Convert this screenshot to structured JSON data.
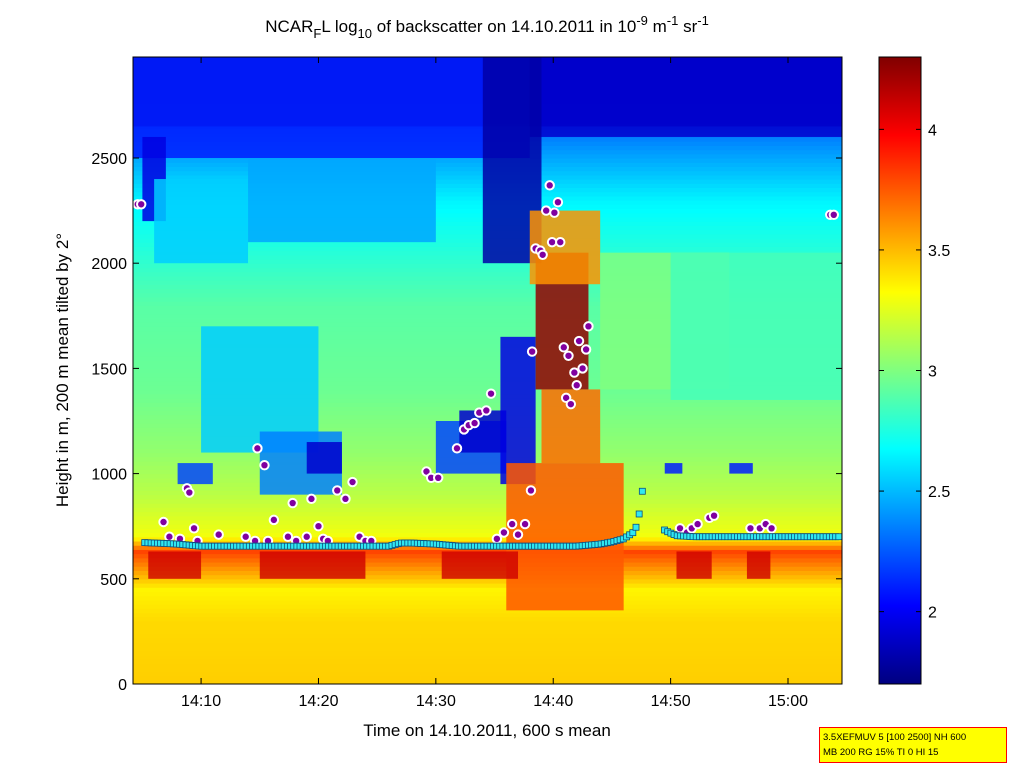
{
  "chart_data": {
    "type": "heatmap",
    "title_parts": {
      "prefix": "NCAR",
      "sub_F": "F",
      "mid1": "L log",
      "sub_10": "10",
      "mid2": " of backscatter on 14.10.2011 in 10",
      "sup_exp1": "-9",
      "mid3": " m",
      "sup_exp2": "-1",
      "mid4": " sr",
      "sup_exp3": "-1"
    },
    "xlabel": "Time on 14.10.2011, 600 s mean",
    "ylabel": "Height in m, 200 m mean tilted by 2°",
    "x_unit": "minutes after 14:00",
    "xlim": [
      4.2,
      64.6
    ],
    "ylim": [
      0,
      2980
    ],
    "x_ticks": [
      {
        "value": 10,
        "label": "14:10"
      },
      {
        "value": 20,
        "label": "14:20"
      },
      {
        "value": 30,
        "label": "14:30"
      },
      {
        "value": 40,
        "label": "14:40"
      },
      {
        "value": 50,
        "label": "14:50"
      },
      {
        "value": 60,
        "label": "15:00"
      }
    ],
    "y_ticks": [
      {
        "value": 0,
        "label": "0"
      },
      {
        "value": 500,
        "label": "500"
      },
      {
        "value": 1000,
        "label": "1000"
      },
      {
        "value": 1500,
        "label": "1500"
      },
      {
        "value": 2000,
        "label": "2000"
      },
      {
        "value": 2500,
        "label": "2500"
      }
    ],
    "colorbar": {
      "range": [
        1.7,
        4.3
      ],
      "ticks": [
        {
          "value": 2,
          "label": "2"
        },
        {
          "value": 2.5,
          "label": "2.5"
        },
        {
          "value": 3,
          "label": "3"
        },
        {
          "value": 3.5,
          "label": "3.5"
        },
        {
          "value": 4,
          "label": "4"
        }
      ],
      "colormap": [
        "#000080",
        "#0000ff",
        "#00ffff",
        "#ffff00",
        "#ff0000",
        "#800000"
      ]
    },
    "field_profile": {
      "heights": [
        0,
        300,
        450,
        550,
        630,
        700,
        900,
        1100,
        1400,
        1800,
        2000,
        2300,
        2600,
        2980
      ],
      "values": [
        3.45,
        3.42,
        3.35,
        3.6,
        3.8,
        3.3,
        3.15,
        3.05,
        2.95,
        2.9,
        2.8,
        2.65,
        2.35,
        1.85
      ]
    },
    "regions": [
      {
        "x": [
          4.2,
          64.6
        ],
        "y": [
          2650,
          2980
        ],
        "value": 1.85
      },
      {
        "x": [
          4.2,
          38
        ],
        "y": [
          2500,
          2980
        ],
        "value": 2.1
      },
      {
        "x": [
          38,
          64.6
        ],
        "y": [
          2600,
          2980
        ],
        "value": 1.9
      },
      {
        "x": [
          5,
          7
        ],
        "y": [
          2200,
          2600
        ],
        "value": 1.95
      },
      {
        "x": [
          6,
          14
        ],
        "y": [
          2000,
          2400
        ],
        "value": 2.55
      },
      {
        "x": [
          14,
          30
        ],
        "y": [
          2100,
          2500
        ],
        "value": 2.45
      },
      {
        "x": [
          10,
          20
        ],
        "y": [
          1100,
          1700
        ],
        "value": 2.55
      },
      {
        "x": [
          15,
          22
        ],
        "y": [
          900,
          1200
        ],
        "value": 2.35
      },
      {
        "x": [
          19,
          22
        ],
        "y": [
          1000,
          1150
        ],
        "value": 1.9
      },
      {
        "x": [
          30,
          36
        ],
        "y": [
          1000,
          1250
        ],
        "value": 2.2
      },
      {
        "x": [
          32,
          36
        ],
        "y": [
          1100,
          1300
        ],
        "value": 1.9
      },
      {
        "x": [
          35.5,
          38.5
        ],
        "y": [
          950,
          1650
        ],
        "value": 1.95
      },
      {
        "x": [
          34,
          39
        ],
        "y": [
          2000,
          2980
        ],
        "value": 1.8
      },
      {
        "x": [
          38.5,
          43
        ],
        "y": [
          1400,
          2050
        ],
        "value": 4.25
      },
      {
        "x": [
          39,
          44
        ],
        "y": [
          1050,
          1400
        ],
        "value": 3.7
      },
      {
        "x": [
          36,
          46
        ],
        "y": [
          350,
          1050
        ],
        "value": 3.75
      },
      {
        "x": [
          38,
          44
        ],
        "y": [
          1900,
          2250
        ],
        "value": 3.6
      },
      {
        "x": [
          44,
          55
        ],
        "y": [
          1400,
          2050
        ],
        "value": 3.0
      },
      {
        "x": [
          50,
          64.6
        ],
        "y": [
          1350,
          2050
        ],
        "value": 2.85
      },
      {
        "x": [
          8,
          11
        ],
        "y": [
          950,
          1050
        ],
        "value": 2.2
      },
      {
        "x": [
          49.5,
          51
        ],
        "y": [
          1000,
          1050
        ],
        "value": 2.1
      },
      {
        "x": [
          55,
          57
        ],
        "y": [
          1000,
          1050
        ],
        "value": 2.1
      }
    ],
    "low_band": {
      "y": [
        500,
        630
      ],
      "value": 4.1,
      "segments": [
        [
          5.5,
          10
        ],
        [
          15,
          24
        ],
        [
          30.5,
          37
        ],
        [
          50.5,
          53.5
        ],
        [
          56.5,
          58.5
        ]
      ]
    },
    "mixing_layer_height": {
      "x": [
        5.2,
        6,
        7,
        8,
        9,
        10,
        12,
        14,
        16,
        18,
        20,
        22,
        24,
        26,
        27,
        28,
        30,
        32,
        34,
        36,
        38,
        40,
        42,
        44,
        45,
        46,
        46.8,
        47.2,
        47.6,
        49.5,
        50.5,
        52,
        54,
        56,
        58,
        60,
        62,
        64.6
      ],
      "y": [
        672,
        670,
        668,
        665,
        660,
        655,
        655,
        655,
        655,
        655,
        655,
        655,
        655,
        655,
        670,
        670,
        665,
        655,
        655,
        655,
        655,
        655,
        655,
        665,
        675,
        690,
        720,
        760,
        920,
        730,
        705,
        700,
        700,
        700,
        700,
        700,
        700,
        700
      ]
    },
    "aerosol_layer_points": {
      "x": [
        4.6,
        4.9,
        6.8,
        7.3,
        8.2,
        8.8,
        9.0,
        9.4,
        9.7,
        11.5,
        13.8,
        14.6,
        14.8,
        15.4,
        15.7,
        16.2,
        17.4,
        17.8,
        18.1,
        19.0,
        19.4,
        20.0,
        20.4,
        20.8,
        21.6,
        22.3,
        22.9,
        23.5,
        24.0,
        24.5,
        29.2,
        29.6,
        30.2,
        31.8,
        32.4,
        32.8,
        33.3,
        33.7,
        34.3,
        34.7,
        35.2,
        35.8,
        36.5,
        37.0,
        37.6,
        38.1,
        38.2,
        38.5,
        38.9,
        39.1,
        39.4,
        39.7,
        39.9,
        40.1,
        40.4,
        40.6,
        40.9,
        41.1,
        41.3,
        41.5,
        41.8,
        42.0,
        42.2,
        42.5,
        42.8,
        43.0,
        50.8,
        51.4,
        51.8,
        52.3,
        53.3,
        53.7,
        56.8,
        57.6,
        58.1,
        58.6,
        63.6,
        63.9
      ],
      "y": [
        2280,
        2280,
        770,
        700,
        690,
        930,
        910,
        740,
        680,
        710,
        700,
        680,
        1120,
        1040,
        680,
        780,
        700,
        860,
        680,
        700,
        880,
        750,
        690,
        680,
        920,
        880,
        960,
        700,
        680,
        680,
        1010,
        980,
        980,
        1120,
        1210,
        1230,
        1240,
        1290,
        1300,
        1380,
        690,
        720,
        760,
        710,
        760,
        920,
        1580,
        2070,
        2060,
        2040,
        2250,
        2370,
        2100,
        2240,
        2290,
        2100,
        1600,
        1360,
        1560,
        1330,
        1480,
        1420,
        1630,
        1500,
        1590,
        1700,
        740,
        720,
        740,
        760,
        790,
        800,
        740,
        740,
        760,
        740,
        2230,
        2230
      ]
    }
  },
  "info_box": {
    "line1": "3.5XEFMUV 5 [100 2500] NH 600",
    "line2": "MB 200 RG 15% TI 0 HI 15"
  }
}
